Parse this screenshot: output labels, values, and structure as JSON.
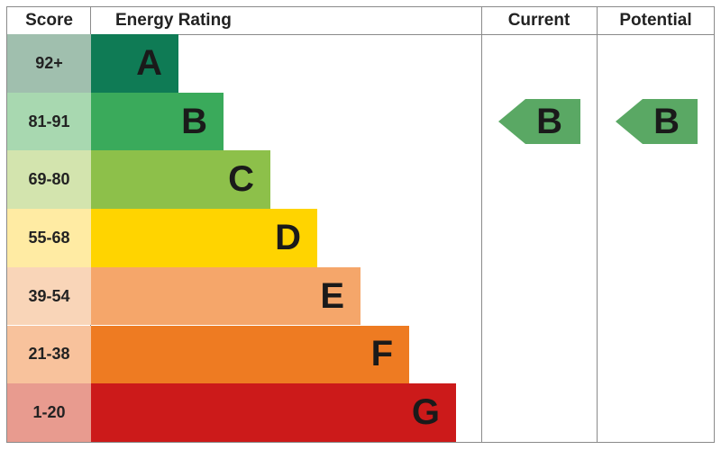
{
  "headers": {
    "score": "Score",
    "rating": "Energy Rating",
    "current": "Current",
    "potential": "Potential"
  },
  "chart_data": {
    "type": "bar",
    "categories": [
      "A",
      "B",
      "C",
      "D",
      "E",
      "F",
      "G"
    ],
    "score_ranges": [
      "92+",
      "81-91",
      "69-80",
      "55-68",
      "39-54",
      "21-38",
      "1-20"
    ],
    "bar_colors": [
      "#0f7b55",
      "#3aaa5b",
      "#8dc04a",
      "#ffd400",
      "#f5a66a",
      "#ee7b22",
      "#cc1a1a"
    ],
    "score_colors": [
      "#a0bfae",
      "#a8d8b0",
      "#d3e4ae",
      "#ffeba3",
      "#f9d5b8",
      "#f8c29c",
      "#e89b8f"
    ],
    "current": {
      "rating": "B",
      "color": "#5aa864"
    },
    "potential": {
      "rating": "B",
      "color": "#5aa864"
    }
  }
}
